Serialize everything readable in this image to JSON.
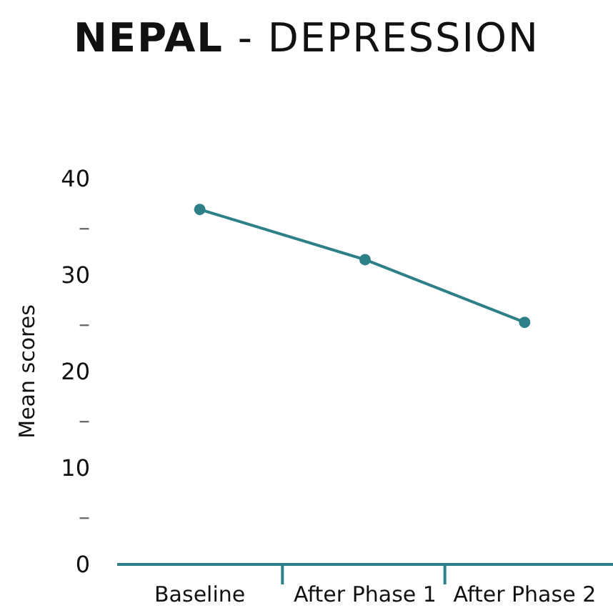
{
  "chart_data": {
    "type": "line",
    "title": "NEPAL - DEPRESSION",
    "ylabel": "Mean scores",
    "categories": [
      "Baseline",
      "After Phase 1",
      "After Phase 2"
    ],
    "series": [
      {
        "color": "#2e8088",
        "values": [
          36.8,
          31.6,
          25.1
        ]
      }
    ],
    "ylim": [
      0,
      40
    ],
    "yticks": [
      0,
      {
        "value": 5,
        "label": "–"
      },
      10,
      {
        "value": 15,
        "label": "–"
      },
      20,
      {
        "value": 25,
        "label": "–"
      },
      30,
      {
        "value": 35,
        "label": "–"
      },
      40
    ],
    "marker": "circle",
    "line_style": "solid",
    "grid": false
  }
}
